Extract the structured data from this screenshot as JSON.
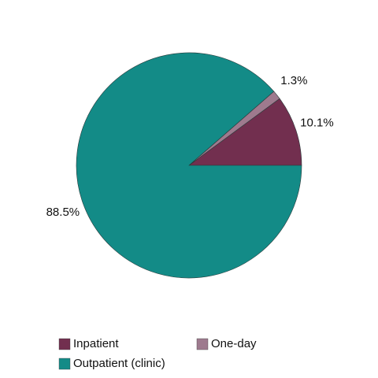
{
  "chart_data": {
    "type": "pie",
    "categories": [
      "Inpatient",
      "One-day",
      "Outpatient (clinic)"
    ],
    "values": [
      10.1,
      1.3,
      88.5
    ],
    "value_labels": [
      "10.1%",
      "1.3%",
      "88.5%"
    ],
    "colors": [
      "#722f4f",
      "#9e7a8e",
      "#138b87"
    ],
    "legend": "bottom"
  }
}
